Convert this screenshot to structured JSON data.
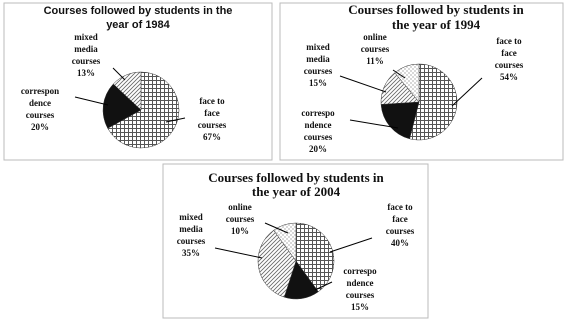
{
  "chart_data": [
    {
      "type": "pie",
      "title": "Courses followed by students in the\nyear of 1984",
      "categories": [
        "face to\nface\ncourses",
        "correspon\ndence\ncourses",
        "mixed\nmedia\ncourses"
      ],
      "values": [
        67,
        20,
        13
      ],
      "value_labels": [
        "67%",
        "20%",
        "13%"
      ],
      "colors": [
        "#555555",
        "#111111",
        "#666666"
      ],
      "fills": [
        "grid",
        "solid",
        "hatch"
      ]
    },
    {
      "type": "pie",
      "title": "Courses followed by students in\nthe year of 1994",
      "categories": [
        "face to\nface\ncourses",
        "correspo\nndence\ncourses",
        "mixed\nmedia\ncourses",
        "online\ncourses"
      ],
      "values": [
        54,
        20,
        15,
        11
      ],
      "value_labels": [
        "54%",
        "20%",
        "15%",
        "11%"
      ],
      "colors": [
        "#555555",
        "#111111",
        "#666666",
        "#777777"
      ],
      "fills": [
        "grid",
        "solid",
        "hatch",
        "dots"
      ]
    },
    {
      "type": "pie",
      "title": "Courses followed by students in\nthe year of 2004",
      "categories": [
        "face to\nface\ncourses",
        "correspo\nndence\ncourses",
        "mixed\nmedia\ncourses",
        "online\ncourses"
      ],
      "values": [
        40,
        15,
        35,
        10
      ],
      "value_labels": [
        "40%",
        "15%",
        "35%",
        "10%"
      ],
      "colors": [
        "#555555",
        "#111111",
        "#666666",
        "#777777"
      ],
      "fills": [
        "grid",
        "solid",
        "hatch",
        "dots"
      ]
    }
  ]
}
